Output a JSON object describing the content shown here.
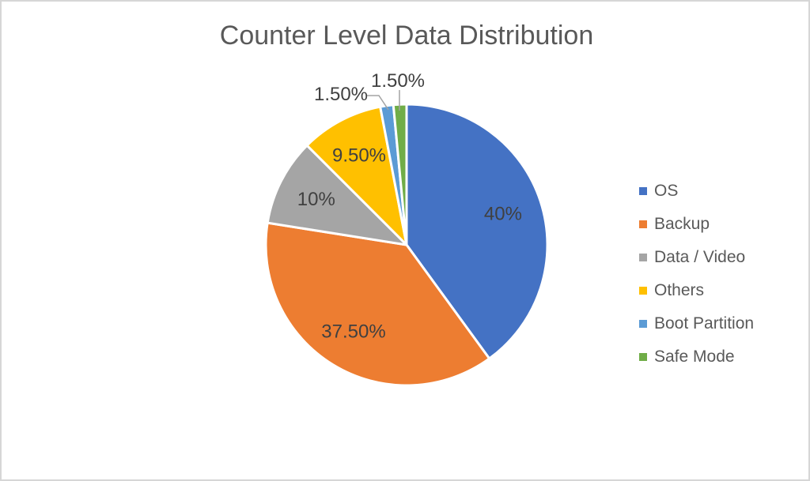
{
  "frame": {
    "background": "#FFFFFF",
    "border_color": "#D6D6D6"
  },
  "chart_data": {
    "type": "pie",
    "title": "Counter Level Data Distribution",
    "categories": [
      "OS",
      "Backup",
      "Data / Video",
      "Others",
      "Boot Partition",
      "Safe Mode"
    ],
    "values": [
      40,
      37.5,
      10,
      9.5,
      1.5,
      1.5
    ],
    "labels": [
      "40%",
      "37.50%",
      "10%",
      "9.50%",
      "1.50%",
      "1.50%"
    ],
    "colors": [
      "#4472C4",
      "#ED7D31",
      "#A5A5A5",
      "#FFC000",
      "#5B9BD5",
      "#70AD47"
    ],
    "legend_position": "right",
    "start_angle_deg": 0,
    "direction": "clockwise",
    "slice_border_color": "#FFFFFF",
    "label_color": "#404040",
    "title_color": "#595959",
    "legend_text_color": "#595959",
    "leader_line_color": "#A3A3A3"
  }
}
